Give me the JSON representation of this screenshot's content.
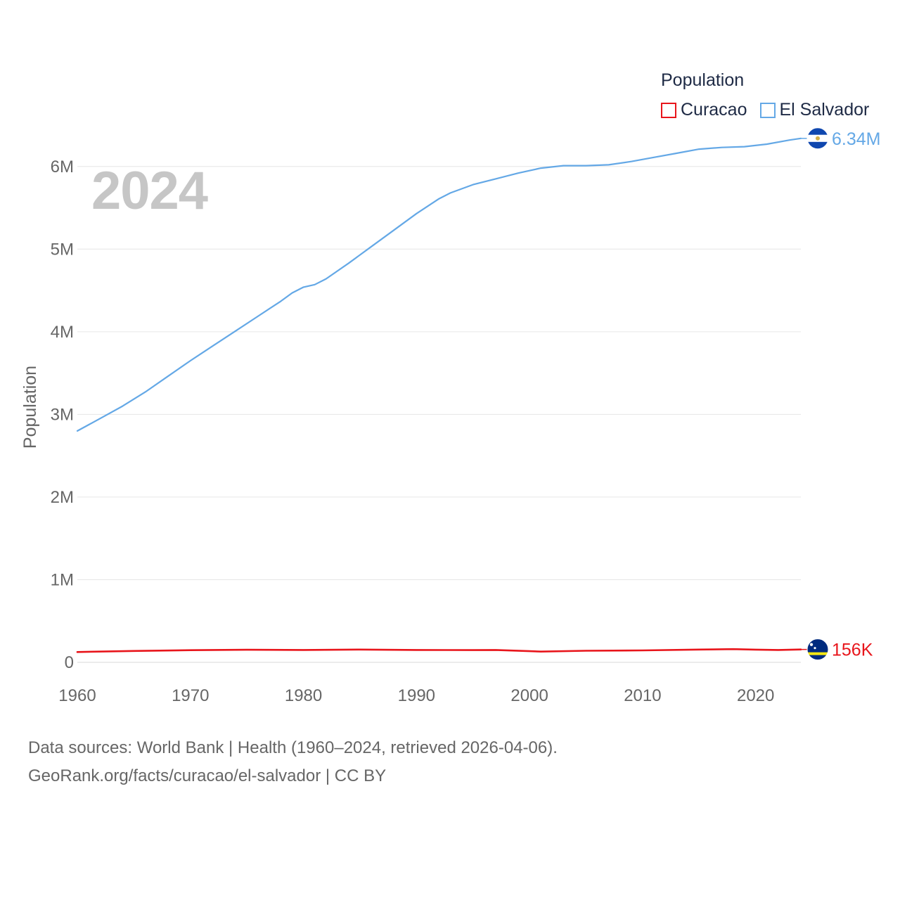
{
  "chart_data": {
    "type": "line",
    "title": "Population",
    "year_label": "2024",
    "ylabel": "Population",
    "xlabel": "",
    "xlim": [
      1960,
      2024
    ],
    "ylim": [
      0,
      6500000
    ],
    "x_ticks": [
      1960,
      1970,
      1980,
      1990,
      2000,
      2010,
      2020
    ],
    "x_tick_labels": [
      "1960",
      "1970",
      "1980",
      "1990",
      "2000",
      "2010",
      "2020"
    ],
    "y_ticks": [
      0,
      1000000,
      2000000,
      3000000,
      4000000,
      5000000,
      6000000
    ],
    "y_tick_labels": [
      "0",
      "1M",
      "2M",
      "3M",
      "4M",
      "5M",
      "6M"
    ],
    "grid": true,
    "legend_position": "top-right",
    "series": [
      {
        "name": "Curacao",
        "color": "#e8151b",
        "end_label": "156K",
        "flag_icon": "curacao-flag-icon",
        "x": [
          1960,
          1965,
          1970,
          1975,
          1980,
          1985,
          1990,
          1995,
          1997,
          2000,
          2001,
          2005,
          2010,
          2015,
          2018,
          2020,
          2022,
          2024
        ],
        "values": [
          125000,
          138000,
          147000,
          152000,
          150000,
          155000,
          150000,
          148000,
          150000,
          135000,
          130000,
          140000,
          145000,
          155000,
          160000,
          154000,
          150000,
          156000
        ]
      },
      {
        "name": "El Salvador",
        "color": "#64a8e6",
        "end_label": "6.34M",
        "flag_icon": "el-salvador-flag-icon",
        "x": [
          1960,
          1962,
          1964,
          1966,
          1968,
          1970,
          1972,
          1974,
          1976,
          1978,
          1979,
          1980,
          1981,
          1982,
          1984,
          1986,
          1988,
          1990,
          1992,
          1993,
          1995,
          1997,
          1999,
          2001,
          2003,
          2005,
          2007,
          2009,
          2011,
          2013,
          2015,
          2017,
          2019,
          2021,
          2023,
          2024
        ],
        "values": [
          2800000,
          2950000,
          3100000,
          3270000,
          3460000,
          3650000,
          3830000,
          4010000,
          4190000,
          4370000,
          4470000,
          4540000,
          4570000,
          4640000,
          4830000,
          5030000,
          5230000,
          5430000,
          5610000,
          5680000,
          5780000,
          5850000,
          5920000,
          5980000,
          6010000,
          6010000,
          6020000,
          6060000,
          6110000,
          6160000,
          6210000,
          6230000,
          6240000,
          6270000,
          6320000,
          6340000
        ]
      }
    ]
  },
  "source": {
    "line1": "Data sources: World Bank | Health (1960–2024, retrieved 2026-04-06).",
    "line2": "GeoRank.org/facts/curacao/el-salvador | CC BY"
  }
}
